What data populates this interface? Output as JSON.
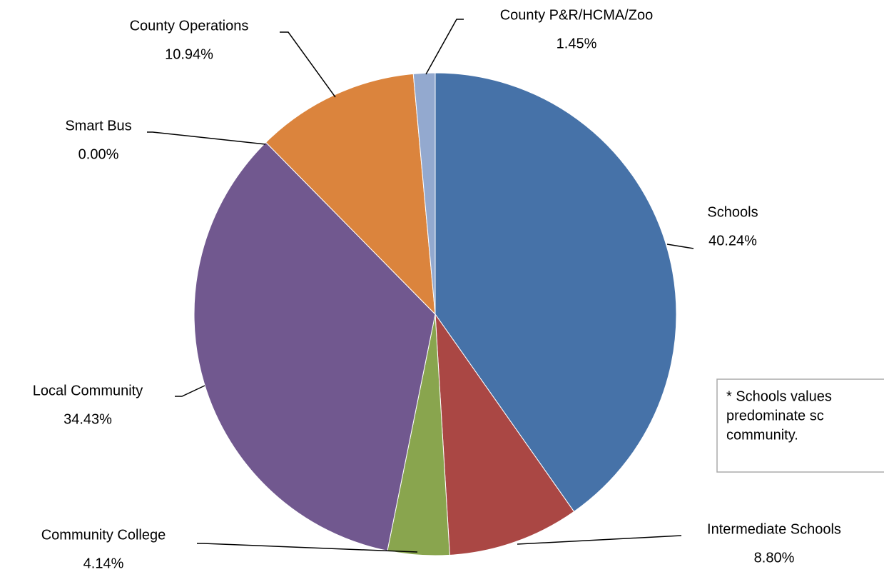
{
  "chart_data": {
    "type": "pie",
    "categories": [
      "Schools",
      "Intermediate Schools",
      "Community College",
      "Local Community",
      "Smart Bus",
      "County Operations",
      "County P&R/HCMA/Zoo"
    ],
    "values": [
      40.24,
      8.8,
      4.14,
      34.43,
      0.0,
      10.94,
      1.45
    ],
    "value_labels": [
      "40.24%",
      "8.80%",
      "4.14%",
      "34.43%",
      "0.00%",
      "10.94%",
      "1.45%"
    ],
    "colors": [
      "#4672a8",
      "#aa4744",
      "#89a54e",
      "#71588f",
      "#4198af",
      "#db843d",
      "#93a9cf"
    ],
    "annotation": [
      "* Schools values",
      "predominate sc",
      "community."
    ]
  }
}
